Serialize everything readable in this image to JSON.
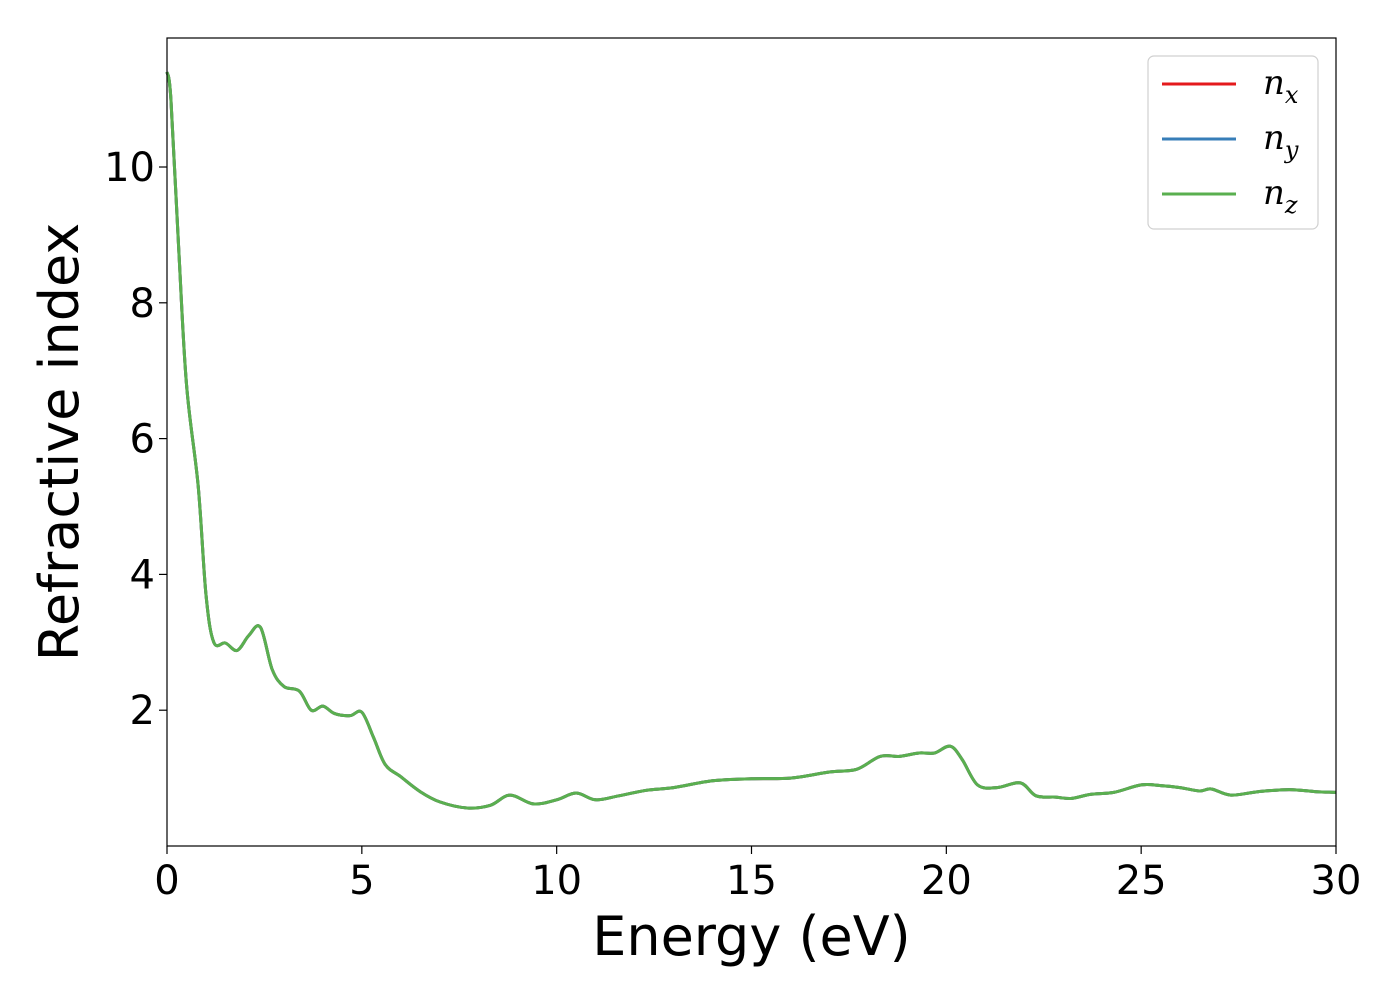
{
  "chart_data": {
    "type": "line",
    "xlabel": "Energy (eV)",
    "ylabel": "Refractive index",
    "xlim": [
      0,
      30
    ],
    "ylim": [
      0,
      11.9
    ],
    "x_ticks": [
      0,
      5,
      10,
      15,
      20,
      25,
      30
    ],
    "y_ticks": [
      2,
      4,
      6,
      8,
      10
    ],
    "grid": false,
    "legend": "top-right",
    "series": [
      {
        "name": "n_x",
        "label_base": "n",
        "label_sub": "x",
        "color": "#e41a1c",
        "x": [
          0,
          0.1,
          0.3,
          0.5,
          0.8,
          1.0,
          1.2,
          1.5,
          1.8,
          2.1,
          2.4,
          2.7,
          3.0,
          3.4,
          3.7,
          4.0,
          4.3,
          4.7,
          5.0,
          5.3,
          5.6,
          6.0,
          6.5,
          7.0,
          7.7,
          8.3,
          8.8,
          9.4,
          10.0,
          10.5,
          11.0,
          11.6,
          12.3,
          13.0,
          14.0,
          15.0,
          16.0,
          17.0,
          17.7,
          18.3,
          18.8,
          19.3,
          19.7,
          20.1,
          20.4,
          20.8,
          21.3,
          21.9,
          22.3,
          22.8,
          23.2,
          23.7,
          24.3,
          25.0,
          25.5,
          26.0,
          26.5,
          26.8,
          27.3,
          28.0,
          28.8,
          29.5,
          30.0
        ],
        "y": [
          11.4,
          11.0,
          8.8,
          6.8,
          5.3,
          3.7,
          3.0,
          2.99,
          2.88,
          3.1,
          3.22,
          2.6,
          2.35,
          2.28,
          2.0,
          2.06,
          1.95,
          1.92,
          1.97,
          1.6,
          1.2,
          1.02,
          0.8,
          0.65,
          0.56,
          0.6,
          0.75,
          0.62,
          0.68,
          0.78,
          0.68,
          0.74,
          0.82,
          0.86,
          0.96,
          0.99,
          1.0,
          1.09,
          1.13,
          1.32,
          1.32,
          1.37,
          1.37,
          1.47,
          1.28,
          0.9,
          0.86,
          0.93,
          0.74,
          0.72,
          0.7,
          0.76,
          0.79,
          0.9,
          0.89,
          0.86,
          0.81,
          0.84,
          0.75,
          0.8,
          0.83,
          0.8,
          0.79
        ]
      },
      {
        "name": "n_y",
        "label_base": "n",
        "label_sub": "y",
        "color": "#377eb8",
        "x": [
          0,
          0.1,
          0.3,
          0.5,
          0.8,
          1.0,
          1.2,
          1.5,
          1.8,
          2.1,
          2.4,
          2.7,
          3.0,
          3.4,
          3.7,
          4.0,
          4.3,
          4.7,
          5.0,
          5.3,
          5.6,
          6.0,
          6.5,
          7.0,
          7.7,
          8.3,
          8.8,
          9.4,
          10.0,
          10.5,
          11.0,
          11.6,
          12.3,
          13.0,
          14.0,
          15.0,
          16.0,
          17.0,
          17.7,
          18.3,
          18.8,
          19.3,
          19.7,
          20.1,
          20.4,
          20.8,
          21.3,
          21.9,
          22.3,
          22.8,
          23.2,
          23.7,
          24.3,
          25.0,
          25.5,
          26.0,
          26.5,
          26.8,
          27.3,
          28.0,
          28.8,
          29.5,
          30.0
        ],
        "y": [
          11.4,
          11.0,
          8.8,
          6.8,
          5.3,
          3.7,
          3.0,
          2.99,
          2.88,
          3.1,
          3.22,
          2.6,
          2.35,
          2.28,
          2.0,
          2.06,
          1.95,
          1.92,
          1.97,
          1.6,
          1.2,
          1.02,
          0.8,
          0.65,
          0.56,
          0.6,
          0.75,
          0.62,
          0.68,
          0.78,
          0.68,
          0.74,
          0.82,
          0.86,
          0.96,
          0.99,
          1.0,
          1.09,
          1.13,
          1.32,
          1.32,
          1.37,
          1.37,
          1.47,
          1.28,
          0.9,
          0.86,
          0.93,
          0.74,
          0.72,
          0.7,
          0.76,
          0.79,
          0.9,
          0.89,
          0.86,
          0.81,
          0.84,
          0.75,
          0.8,
          0.83,
          0.8,
          0.79
        ]
      },
      {
        "name": "n_z",
        "label_base": "n",
        "label_sub": "z",
        "color": "#5aaf4f",
        "x": [
          0,
          0.1,
          0.3,
          0.5,
          0.8,
          1.0,
          1.2,
          1.5,
          1.8,
          2.1,
          2.4,
          2.7,
          3.0,
          3.4,
          3.7,
          4.0,
          4.3,
          4.7,
          5.0,
          5.3,
          5.6,
          6.0,
          6.5,
          7.0,
          7.7,
          8.3,
          8.8,
          9.4,
          10.0,
          10.5,
          11.0,
          11.6,
          12.3,
          13.0,
          14.0,
          15.0,
          16.0,
          17.0,
          17.7,
          18.3,
          18.8,
          19.3,
          19.7,
          20.1,
          20.4,
          20.8,
          21.3,
          21.9,
          22.3,
          22.8,
          23.2,
          23.7,
          24.3,
          25.0,
          25.5,
          26.0,
          26.5,
          26.8,
          27.3,
          28.0,
          28.8,
          29.5,
          30.0
        ],
        "y": [
          11.4,
          11.0,
          8.8,
          6.8,
          5.3,
          3.7,
          3.0,
          2.99,
          2.88,
          3.1,
          3.22,
          2.6,
          2.35,
          2.28,
          2.0,
          2.06,
          1.95,
          1.92,
          1.97,
          1.6,
          1.2,
          1.02,
          0.8,
          0.65,
          0.56,
          0.6,
          0.75,
          0.62,
          0.68,
          0.78,
          0.68,
          0.74,
          0.82,
          0.86,
          0.96,
          0.99,
          1.0,
          1.09,
          1.13,
          1.32,
          1.32,
          1.37,
          1.37,
          1.47,
          1.28,
          0.9,
          0.86,
          0.93,
          0.74,
          0.72,
          0.7,
          0.76,
          0.79,
          0.9,
          0.89,
          0.86,
          0.81,
          0.84,
          0.75,
          0.8,
          0.83,
          0.8,
          0.79
        ]
      }
    ]
  }
}
